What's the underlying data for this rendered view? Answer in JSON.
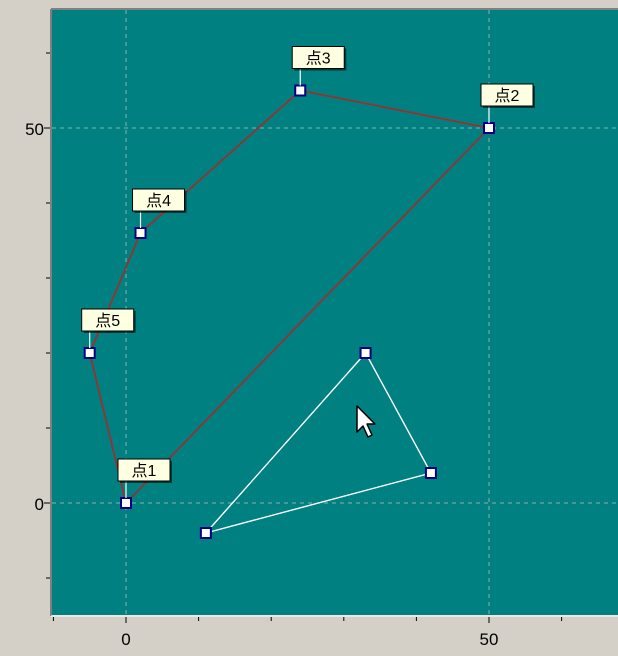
{
  "colors": {
    "window_bg": "#d4d0c8",
    "plot_bg": "#008080",
    "grid": "#c0c0c0",
    "polygon_line": "#a52a2a",
    "overlay_line": "#ffffff",
    "marker_fill": "#ffffff",
    "marker_border": "#000080",
    "label_bg": "#ffffe1"
  },
  "x_axis": {
    "ticks": [
      {
        "label": "0",
        "value": 0
      },
      {
        "label": "50",
        "value": 50
      }
    ]
  },
  "y_axis": {
    "ticks": [
      {
        "label": "50",
        "value": 50
      },
      {
        "label": "0",
        "value": 0
      }
    ]
  },
  "chart_data": {
    "type": "scatter",
    "xlim": [
      -10,
      60
    ],
    "ylim": [
      -10,
      65
    ],
    "grid": true,
    "polygon": {
      "closed": true,
      "points": [
        {
          "label": "点1",
          "x": 0,
          "y": 0
        },
        {
          "label": "点2",
          "x": 50,
          "y": 50
        },
        {
          "label": "点3",
          "x": 24,
          "y": 55
        },
        {
          "label": "点4",
          "x": 2,
          "y": 36
        },
        {
          "label": "点5",
          "x": -5,
          "y": 20
        }
      ]
    },
    "overlay_triangle": {
      "closed": true,
      "points": [
        {
          "x": 11,
          "y": -4
        },
        {
          "x": 33,
          "y": 20
        },
        {
          "x": 42,
          "y": 4
        }
      ]
    }
  },
  "cursor": {
    "icon": "arrow-cursor-icon"
  }
}
